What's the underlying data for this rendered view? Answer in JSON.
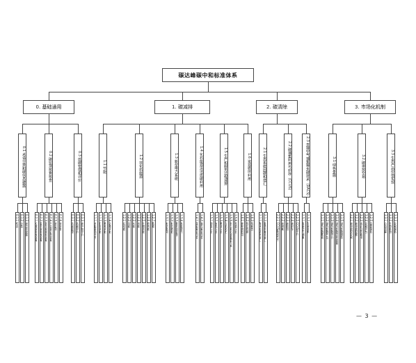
{
  "root": {
    "label": "碳达峰碳中和标准体系"
  },
  "categories": [
    {
      "label": "0. 基础通用",
      "subs": [
        {
          "label": "0.1 术语分类和碳信息披露",
          "leaves": [
            "0.1.1 术语",
            "0.1.2 分类",
            "0.1.3 碳信息披露"
          ]
        },
        {
          "label": "0.2 碳监测核算核查",
          "leaves": [
            "0.2.1 区域碳排放核算",
            "0.2.2 组织碳排放核算",
            "0.2.3 项目碳减排核算",
            "0.2.4 产品碳足迹核算",
            "0.2.5 碳监测",
            "0.2.6 碳核查"
          ]
        },
        {
          "label": "0.3 低碳管理和评价",
          "leaves": [
            "0.3.1 低碳管理",
            "0.3.2 低碳评价",
            "0.3.3 碳中和评价"
          ]
        }
      ]
    },
    {
      "label": "1. 碳减排",
      "subs": [
        {
          "label": "1.1 节能",
          "leaves": [
            "1.1.1 节能基础共性",
            "1.1.2 工业节能",
            "1.1.3 建筑节能",
            "1.1.4 交通节能"
          ]
        },
        {
          "label": "1.2 非化石能源",
          "leaves": [
            "1.2.1 太阳能",
            "1.2.2 风能",
            "1.2.3 水能",
            "1.2.4 核能",
            "1.2.5 生物质能",
            "1.2.6 地热能",
            "1.2.7 氢能"
          ]
        },
        {
          "label": "1.3 新型电力系统",
          "leaves": [
            "1.3.1 新型电网",
            "1.3.2 新型储能",
            "1.3.3 需求侧管理",
            "1.3.4 电能替代"
          ]
        },
        {
          "label": "1.4 化石能源清洁低碳利用",
          "leaves": [
            "1.4.1 煤炭清洁利用",
            "1.4.2 油气清洁利用"
          ]
        },
        {
          "label": "1.5 生产和服务过程减排",
          "leaves": [
            "1.5.1 钢铁行业",
            "1.5.2 有色行业",
            "1.5.3 建材行业",
            "1.5.4 石化化工",
            "1.5.5 非二氧化碳温室气体",
            "1.5.6 其他行业"
          ]
        },
        {
          "label": "1.6 资源循环利用",
          "leaves": [
            "1.6.1 废弃物利用",
            "1.6.2 再生资源",
            "1.6.3 再制造"
          ]
        }
      ]
    },
    {
      "label": "2. 碳清除",
      "subs": [
        {
          "label": "2.1 生态系统固碳和增汇",
          "leaves": [
            "2.1.1 森林和草原碳汇",
            "2.1.2 湿地和海洋碳汇"
          ]
        },
        {
          "label": "2.2 碳捕集利用与封存（CCUS）",
          "leaves": [
            "2.2.1 CCUS基础共性",
            "2.2.2 碳捕集",
            "2.2.3 碳利用",
            "2.2.4 碳封存",
            "2.2.5 CCUS评价"
          ]
        },
        {
          "label": "2.3 直接空气捕集等负碳技术（DACS）",
          "leaves": [
            "2.3.1 直接空气捕集",
            "2.3.2 负碳技术"
          ]
        }
      ]
    },
    {
      "label": "3. 市场化机制",
      "subs": [
        {
          "label": "3.1 绿色金融",
          "leaves": [
            "3.1.1 绿色金融基础",
            "3.1.2 绿色金融产品",
            "3.1.3 绿色金融评价",
            "3.1.4 绿色金融信息披露",
            "3.1.5 绿色金融服务"
          ]
        },
        {
          "label": "3.2 碳排放交易",
          "leaves": [
            "3.2.1 碳排放权交易",
            "3.2.2 碳排放配额",
            "3.2.3 核证自愿减排",
            "3.2.4 交易平台",
            "3.2.5 监管服务"
          ]
        },
        {
          "label": "3.3 生态产品价值实现",
          "leaves": [
            "3.3.1 价值核算",
            "3.3.2 生态补偿",
            "3.3.3 交易服务"
          ]
        }
      ]
    }
  ],
  "page_number": "— 3 —"
}
